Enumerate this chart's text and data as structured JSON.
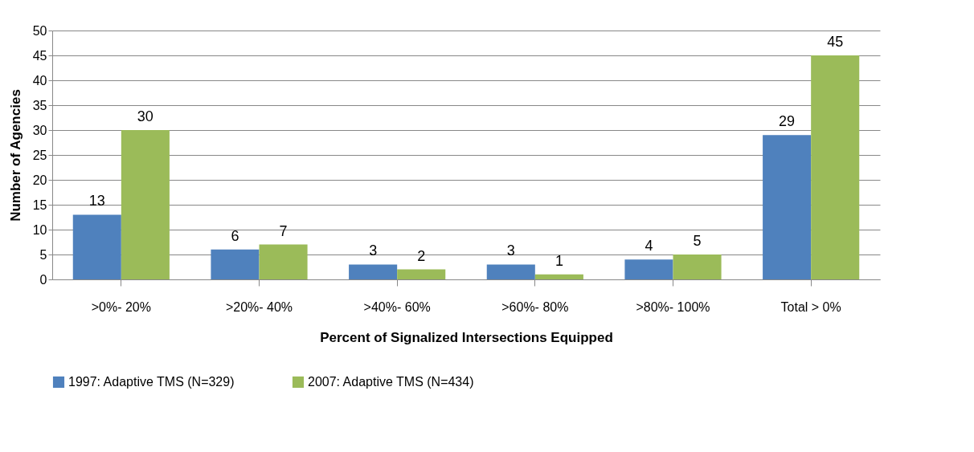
{
  "chart_data": {
    "type": "bar",
    "xlabel": "Percent of Signalized  Intersections Equipped",
    "ylabel": "Number of Agencies",
    "categories": [
      ">0%- 20%",
      ">20%- 40%",
      ">40%- 60%",
      ">60%- 80%",
      ">80%- 100%",
      "Total > 0%"
    ],
    "series": [
      {
        "name": "1997: Adaptive TMS (N=329)",
        "color": "#4f81bd",
        "values": [
          13,
          6,
          3,
          3,
          4,
          29
        ]
      },
      {
        "name": "2007: Adaptive TMS (N=434)",
        "color": "#9bbb59",
        "values": [
          30,
          7,
          2,
          1,
          5,
          45
        ]
      }
    ],
    "ylim": [
      0,
      50
    ],
    "yticks": [
      0,
      5,
      10,
      15,
      20,
      25,
      30,
      35,
      40,
      45,
      50
    ],
    "grid": "y",
    "legend": "bottom",
    "data_labels": true
  }
}
